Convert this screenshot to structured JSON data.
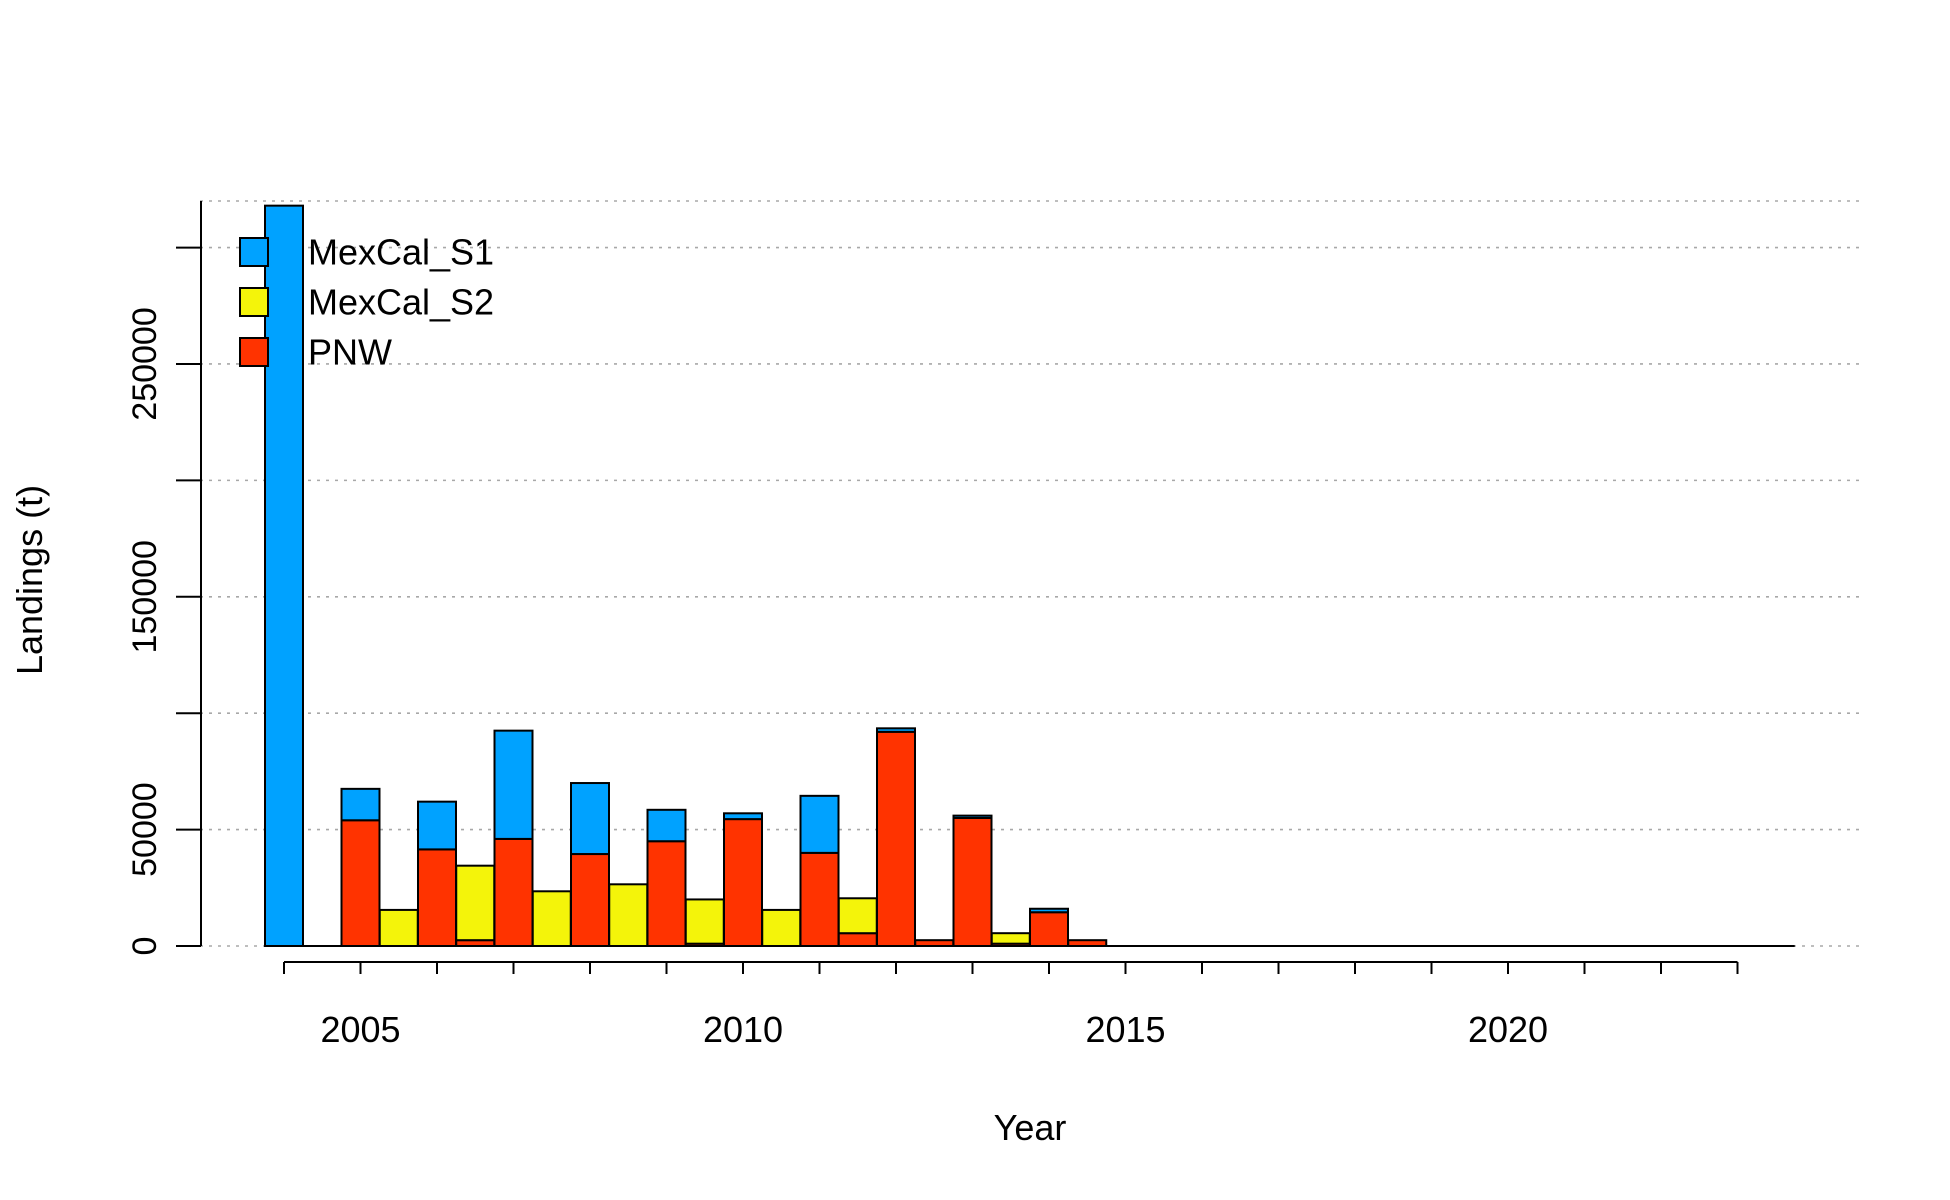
{
  "chart_data": {
    "type": "bar",
    "stacking": "stacked",
    "title": "",
    "xlabel": "Year",
    "ylabel": "Landings (t)",
    "x": [
      2004,
      2004.5,
      2005,
      2005.5,
      2006,
      2006.5,
      2007,
      2007.5,
      2008,
      2008.5,
      2009,
      2009.5,
      2010,
      2010.5,
      2011,
      2011.5,
      2012,
      2012.5,
      2013,
      2013.5,
      2014,
      2014.5,
      2015,
      2015.5,
      2016,
      2016.5,
      2017,
      2017.5,
      2018,
      2018.5,
      2019,
      2019.5,
      2020,
      2020.5,
      2021,
      2021.5,
      2022,
      2022.5,
      2023,
      2023.5
    ],
    "series": [
      {
        "name": "PNW",
        "color": "#FF3300",
        "values": [
          0,
          0,
          54000,
          0,
          41500,
          2500,
          46000,
          0,
          39500,
          0,
          45000,
          1000,
          54500,
          0,
          40000,
          5500,
          92000,
          2500,
          55000,
          1000,
          14500,
          2500,
          0,
          0,
          0,
          0,
          0,
          0,
          0,
          0,
          0,
          0,
          0,
          0,
          0,
          0,
          0,
          0,
          0,
          0
        ]
      },
      {
        "name": "MexCal_S2",
        "color": "#F4F40A",
        "values": [
          0,
          0,
          0,
          15500,
          0,
          32000,
          0,
          23500,
          0,
          26500,
          0,
          19000,
          0,
          15500,
          0,
          15000,
          0,
          0,
          0,
          4500,
          0,
          0,
          0,
          0,
          0,
          0,
          0,
          0,
          0,
          0,
          0,
          0,
          0,
          0,
          0,
          0,
          0,
          0,
          0,
          0
        ]
      },
      {
        "name": "MexCal_S1",
        "color": "#00A2FF",
        "values": [
          318000,
          0,
          13500,
          0,
          20500,
          0,
          46500,
          0,
          30500,
          0,
          13500,
          0,
          2500,
          0,
          24500,
          0,
          1500,
          0,
          1000,
          0,
          1500,
          0,
          0,
          0,
          0,
          0,
          0,
          0,
          0,
          0,
          0,
          0,
          0,
          0,
          0,
          0,
          0,
          0,
          0,
          0
        ]
      }
    ],
    "ylim": [
      0,
      320000
    ],
    "y_ticks": [
      0,
      50000,
      100000,
      150000,
      200000,
      250000,
      300000
    ],
    "y_tick_labels": [
      "0",
      "50000",
      "",
      "150000",
      "",
      "250000",
      ""
    ],
    "x_tick_labels": [
      {
        "value": 2005,
        "label": "2005"
      },
      {
        "value": 2010,
        "label": "2010"
      },
      {
        "value": 2015,
        "label": "2015"
      },
      {
        "value": 2020,
        "label": "2020"
      }
    ],
    "x_minor_ticks": [
      2004,
      2005,
      2006,
      2007,
      2008,
      2009,
      2010,
      2011,
      2012,
      2013,
      2014,
      2015,
      2016,
      2017,
      2018,
      2019,
      2020,
      2021,
      2022,
      2023
    ],
    "grid": "horizontal-dotted",
    "legend": {
      "position": "top-left",
      "entries": [
        {
          "label": "MexCal_S1",
          "color": "#00A2FF"
        },
        {
          "label": "MexCal_S2",
          "color": "#F4F40A"
        },
        {
          "label": "PNW",
          "color": "#FF3300"
        }
      ]
    }
  }
}
